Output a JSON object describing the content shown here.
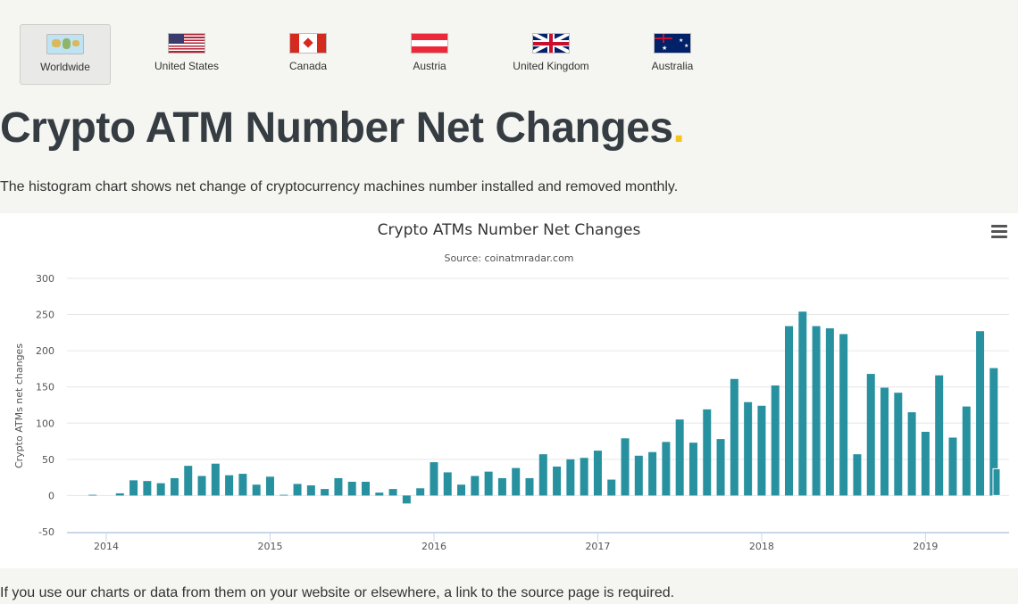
{
  "tabs": [
    {
      "label": "Worldwide",
      "icon": "world-map-icon",
      "active": true
    },
    {
      "label": "United States",
      "icon": "us-flag-icon"
    },
    {
      "label": "Canada",
      "icon": "canada-flag-icon"
    },
    {
      "label": "Austria",
      "icon": "austria-flag-icon"
    },
    {
      "label": "United Kingdom",
      "icon": "uk-flag-icon"
    },
    {
      "label": "Australia",
      "icon": "australia-flag-icon"
    }
  ],
  "page": {
    "title": "Crypto ATM Number Net Changes",
    "title_dot": ".",
    "description": "The histogram chart shows net change of cryptocurrency machines number installed and removed monthly.",
    "footer": "If you use our charts or data from them on your website or elsewhere, a link to the source page is required."
  },
  "colors": {
    "bar": "#2891a0",
    "accent_dot": "#f5c518"
  },
  "chart_data": {
    "type": "bar",
    "title": "Crypto ATMs Number Net Changes",
    "subtitle": "Source: coinatmradar.com",
    "ylabel": "Crypto ATMs net changes",
    "xlabel": "",
    "ylim": [
      -50,
      300
    ],
    "yticks": [
      "-50",
      "0",
      "50",
      "100",
      "150",
      "200",
      "250",
      "300"
    ],
    "xticks": [
      "2014",
      "2015",
      "2016",
      "2017",
      "2018",
      "2019"
    ],
    "grid": true,
    "categories": [
      "2013-12",
      "2014-01",
      "2014-02",
      "2014-03",
      "2014-04",
      "2014-05",
      "2014-06",
      "2014-07",
      "2014-08",
      "2014-09",
      "2014-10",
      "2014-11",
      "2014-12",
      "2015-01",
      "2015-02",
      "2015-03",
      "2015-04",
      "2015-05",
      "2015-06",
      "2015-07",
      "2015-08",
      "2015-09",
      "2015-10",
      "2015-11",
      "2015-12",
      "2016-01",
      "2016-02",
      "2016-03",
      "2016-04",
      "2016-05",
      "2016-06",
      "2016-07",
      "2016-08",
      "2016-09",
      "2016-10",
      "2016-11",
      "2016-12",
      "2017-01",
      "2017-02",
      "2017-03",
      "2017-04",
      "2017-05",
      "2017-06",
      "2017-07",
      "2017-08",
      "2017-09",
      "2017-10",
      "2017-11",
      "2017-12",
      "2018-01",
      "2018-02",
      "2018-03",
      "2018-04",
      "2018-05",
      "2018-06",
      "2018-07",
      "2018-08",
      "2018-09",
      "2018-10",
      "2018-11",
      "2018-12",
      "2019-01",
      "2019-02",
      "2019-03",
      "2019-04",
      "2019-05",
      "2019-06",
      "2019-07"
    ],
    "values": [
      1,
      0,
      3,
      21,
      20,
      17,
      24,
      41,
      27,
      44,
      28,
      30,
      15,
      26,
      1,
      16,
      14,
      9,
      24,
      19,
      19,
      4,
      9,
      -11,
      10,
      46,
      32,
      15,
      27,
      33,
      24,
      38,
      24,
      57,
      40,
      50,
      52,
      62,
      22,
      79,
      55,
      60,
      74,
      105,
      73,
      119,
      78,
      161,
      129,
      124,
      152,
      234,
      254,
      234,
      231,
      223,
      57,
      168,
      149,
      142,
      115,
      88,
      166,
      80,
      123,
      227,
      176,
      37
    ]
  }
}
